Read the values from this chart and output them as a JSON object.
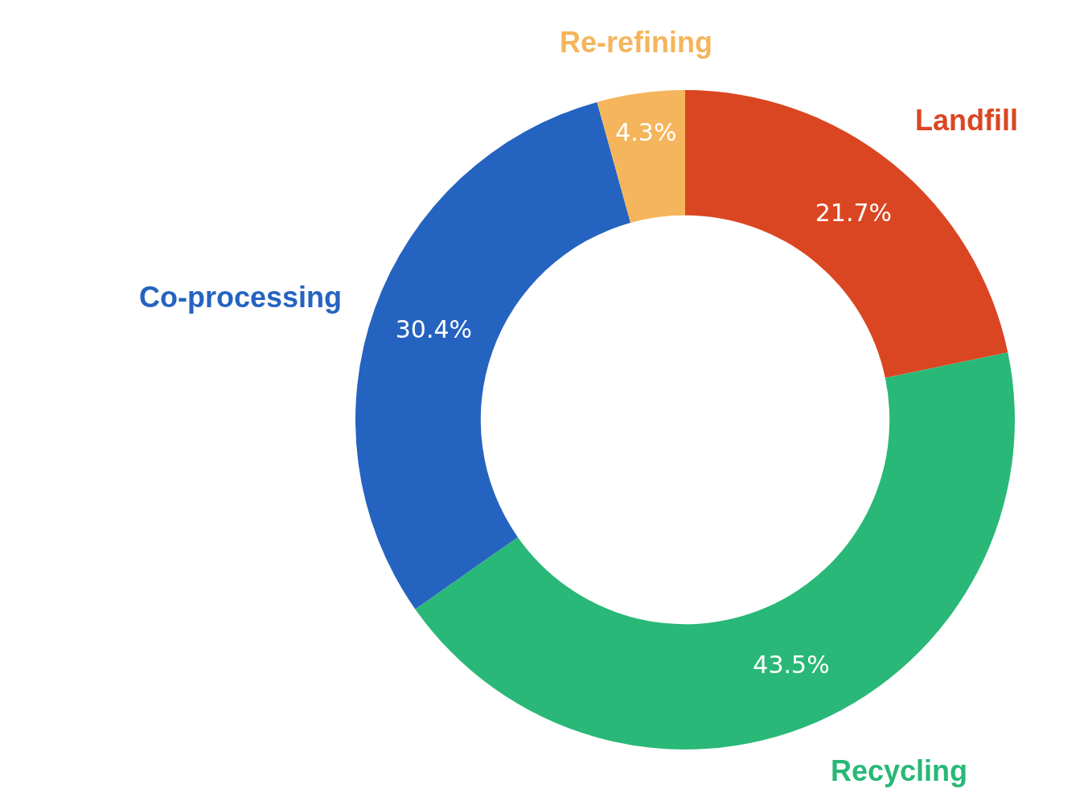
{
  "chart_data": {
    "type": "donut",
    "categories": [
      "Landfill",
      "Recycling",
      "Co-processing",
      "Re-refining"
    ],
    "values": [
      21.7,
      43.5,
      30.4,
      4.3
    ],
    "colors": [
      "#db4622",
      "#29b877",
      "#2563c0",
      "#f5b55c"
    ],
    "value_labels": [
      "21.7%",
      "43.5%",
      "30.4%",
      "4.3%"
    ]
  }
}
